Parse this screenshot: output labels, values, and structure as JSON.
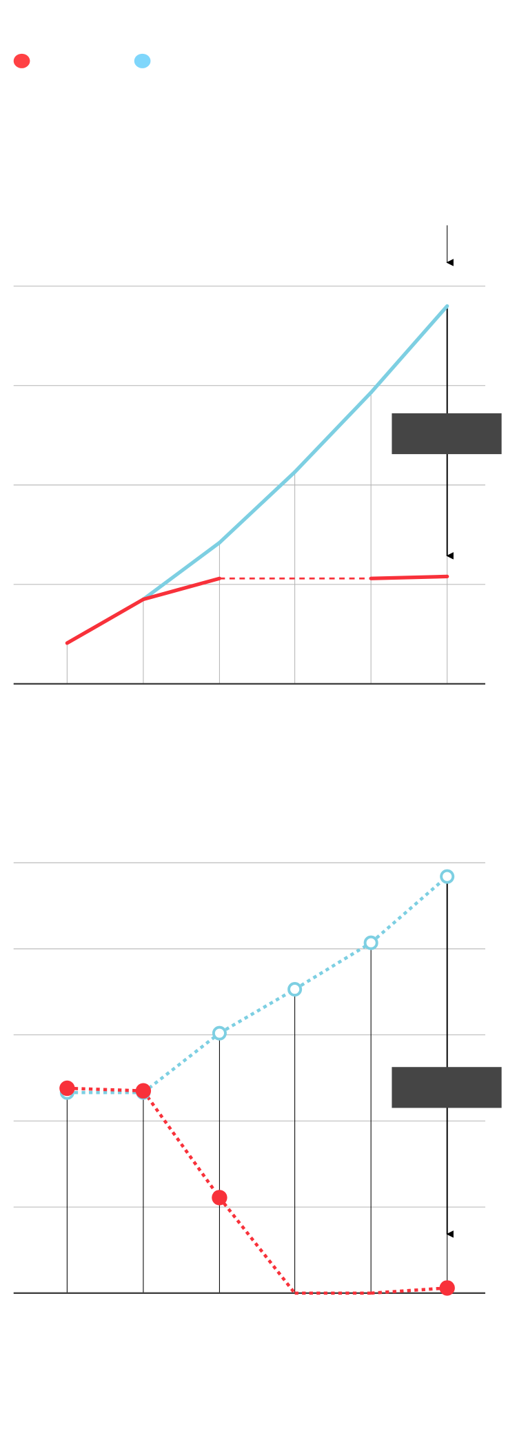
{
  "colors": {
    "red": "#f8313a",
    "blue": "#7dcfe2",
    "legend_red": "#ff4144",
    "legend_blue": "#7fd6fb",
    "annotation_box": "#454545",
    "grid": "#b4b4b4",
    "axis": "#404040"
  },
  "legend": [
    {
      "color": "#ff4144",
      "marker": "dot"
    },
    {
      "color": "#7fd6fb",
      "marker": "dot"
    }
  ],
  "chart_data": [
    {
      "type": "line",
      "x": [
        1,
        2,
        3,
        4,
        5,
        6
      ],
      "ylim": [
        0,
        4
      ],
      "grid": true,
      "series": [
        {
          "color": "#7dcfe2",
          "style": "solid",
          "values": [
            null,
            0.85,
            1.42,
            2.13,
            2.93,
            3.8
          ]
        },
        {
          "color": "#f8313a",
          "style": "solid-with-dashed-gap",
          "values": [
            0.41,
            0.85,
            1.06,
            null,
            1.06,
            1.08
          ]
        }
      ],
      "annotation": {
        "type": "arrow-down-with-box",
        "at_x": 6
      }
    },
    {
      "type": "line",
      "x": [
        1,
        2,
        3,
        4,
        5,
        6
      ],
      "ylim": [
        0,
        5
      ],
      "grid": true,
      "series": [
        {
          "color": "#7dcfe2",
          "style": "dotted",
          "marker": "hollow-circle",
          "values": [
            2.33,
            2.33,
            3.02,
            3.53,
            4.07,
            4.84
          ]
        },
        {
          "color": "#f8313a",
          "style": "dotted",
          "marker": "filled-circle",
          "values": [
            2.38,
            2.35,
            1.11,
            0,
            0,
            0.06
          ]
        }
      ],
      "annotation": {
        "type": "arrow-down-with-box",
        "at_x": 6
      }
    }
  ]
}
